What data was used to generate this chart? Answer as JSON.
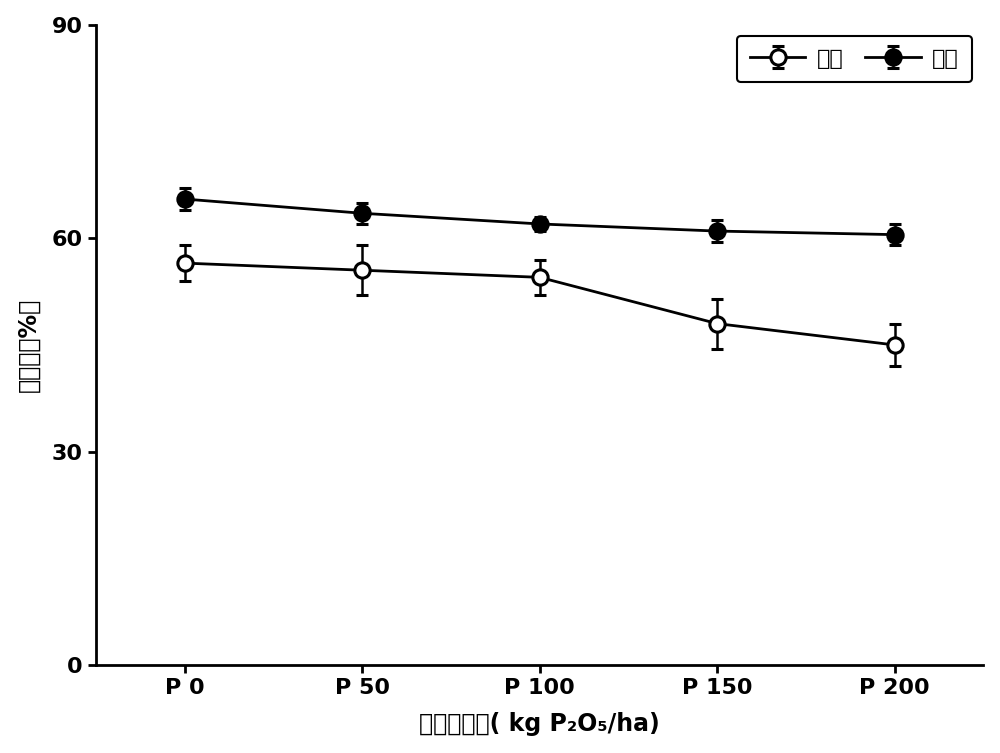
{
  "x_positions": [
    0,
    1,
    2,
    3,
    4
  ],
  "x_labels": [
    "P 0",
    "P 50",
    "P 100",
    "P 150",
    "P 200"
  ],
  "buckwheat_y": [
    56.5,
    55.5,
    54.5,
    48.0,
    45.0
  ],
  "buckwheat_err": [
    2.5,
    3.5,
    2.5,
    3.5,
    3.0
  ],
  "maize_y": [
    65.5,
    63.5,
    62.0,
    61.0,
    60.5
  ],
  "maize_err": [
    1.5,
    1.5,
    1.0,
    1.5,
    1.5
  ],
  "ylabel": "侵染率（%）",
  "xlabel": "磷肆施用量( kg P₂O₅/ha)",
  "legend_buckwheat": "药麦",
  "legend_maize": "玉米",
  "ylim": [
    0,
    90
  ],
  "yticks": [
    0,
    30,
    60,
    90
  ],
  "line_color": "#000000",
  "bg_color": "#ffffff",
  "marker_size": 11,
  "line_width": 2.0,
  "capsize": 4,
  "label_fontsize": 17,
  "tick_fontsize": 16,
  "legend_fontsize": 16
}
